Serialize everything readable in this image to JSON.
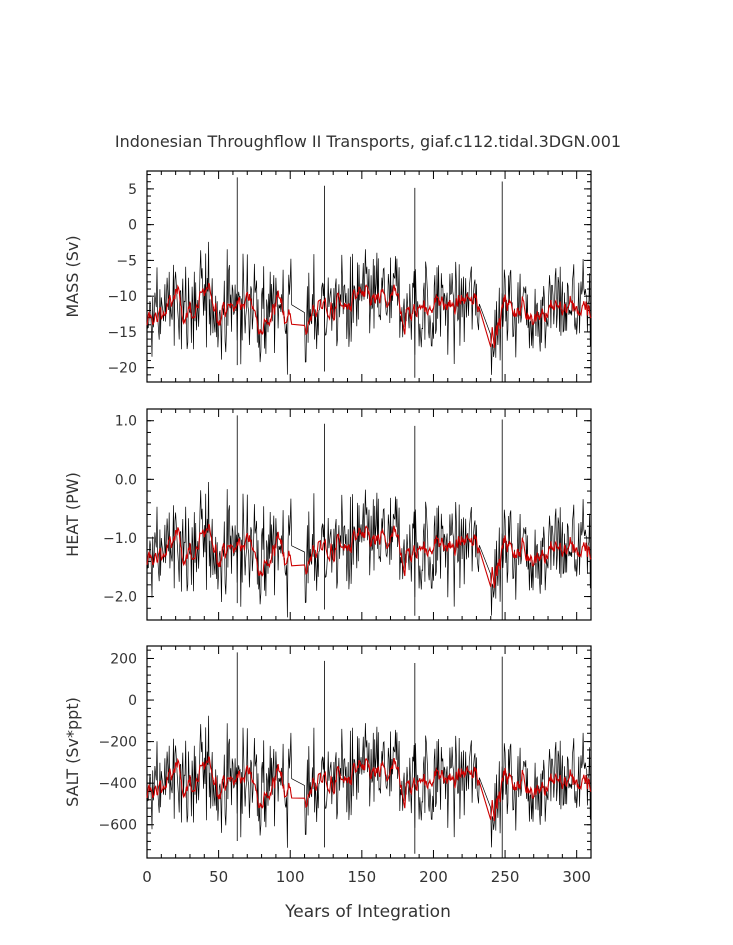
{
  "chart_data": {
    "title": "Indonesian Throughflow II Transports, giaf.c112.tidal.3DGN.001",
    "xlabel": "Years of Integration",
    "xlim": [
      0,
      310
    ],
    "xticks": [
      0,
      50,
      100,
      150,
      200,
      250,
      300
    ],
    "xtick_labels": [
      "0",
      "50",
      "100",
      "150",
      "200",
      "250",
      "300"
    ],
    "colors": {
      "raw": "#000000",
      "smooth": "#cc0000"
    },
    "segments": [
      [
        0,
        101
      ],
      [
        110,
        232
      ],
      [
        240,
        310
      ]
    ],
    "spikes": [
      {
        "x": 63,
        "up": 0.97,
        "down": 0.08
      },
      {
        "x": 124,
        "up": 0.93,
        "down": 0.05
      },
      {
        "x": 187,
        "up": 0.92,
        "down": 0.02
      },
      {
        "x": 248,
        "up": 0.95,
        "down": 0.0
      }
    ],
    "panels": [
      {
        "type": "line",
        "ylabel": "MASS (Sv)",
        "ylim": [
          -22,
          7.5
        ],
        "yticks": [
          5,
          0,
          -5,
          -10,
          -15,
          -20
        ],
        "ytick_labels": [
          "5",
          "0",
          "−5",
          "−10",
          "−15",
          "−20"
        ],
        "series": [
          {
            "name": "raw",
            "mean": -11.3,
            "spread": 4.4,
            "min": -21.5
          },
          {
            "name": "smooth",
            "mean": -11.3,
            "spread": 1.3,
            "min": -17
          }
        ]
      },
      {
        "type": "line",
        "ylabel": "HEAT (PW)",
        "ylim": [
          -2.4,
          1.2
        ],
        "yticks": [
          1.0,
          0.0,
          -1.0,
          -2.0
        ],
        "ytick_labels": [
          "1.0",
          "0.0",
          "−1.0",
          "−2.0"
        ],
        "series": [
          {
            "name": "raw",
            "mean": -1.15,
            "spread": 0.55,
            "min": -2.3
          },
          {
            "name": "smooth",
            "mean": -1.15,
            "spread": 0.16,
            "min": -1.8
          }
        ]
      },
      {
        "type": "line",
        "ylabel": "SALT (Sv*ppt)",
        "ylim": [
          -760,
          260
        ],
        "yticks": [
          200,
          0,
          -200,
          -400,
          -600
        ],
        "ytick_labels": [
          "200",
          "0",
          "−200",
          "−400",
          "−600"
        ],
        "series": [
          {
            "name": "raw",
            "mean": -380,
            "spread": 150,
            "min": -740
          },
          {
            "name": "smooth",
            "mean": -380,
            "spread": 45,
            "min": -570
          }
        ]
      }
    ]
  }
}
